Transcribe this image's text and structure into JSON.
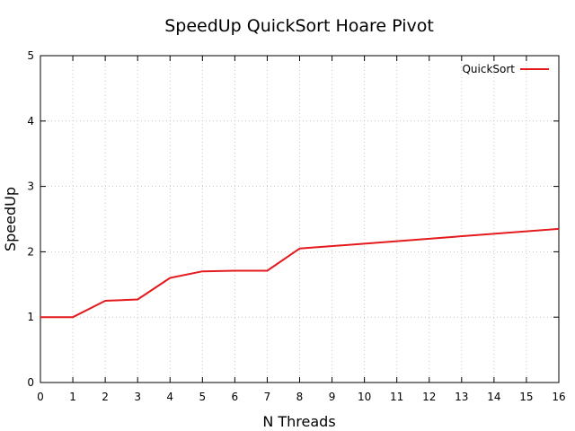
{
  "chart_data": {
    "type": "line",
    "title": "SpeedUp QuickSort Hoare Pivot",
    "xlabel": "N Threads",
    "ylabel": "SpeedUp",
    "xlim": [
      0,
      16
    ],
    "ylim": [
      0,
      5
    ],
    "xticks": [
      "0",
      "1",
      "2",
      "3",
      "4",
      "5",
      "6",
      "7",
      "8",
      "9",
      "10",
      "11",
      "12",
      "13",
      "14",
      "15",
      "16"
    ],
    "yticks": [
      "0",
      "1",
      "2",
      "3",
      "4",
      "5"
    ],
    "grid": true,
    "legend_position": "top-right",
    "series": [
      {
        "name": "QuickSort",
        "color": "#e41a1c",
        "x": [
          0,
          1,
          2,
          3,
          4,
          5,
          6,
          7,
          8,
          16
        ],
        "y": [
          1.0,
          1.0,
          1.25,
          1.27,
          1.6,
          1.7,
          1.71,
          1.71,
          2.05,
          2.35
        ]
      }
    ]
  }
}
